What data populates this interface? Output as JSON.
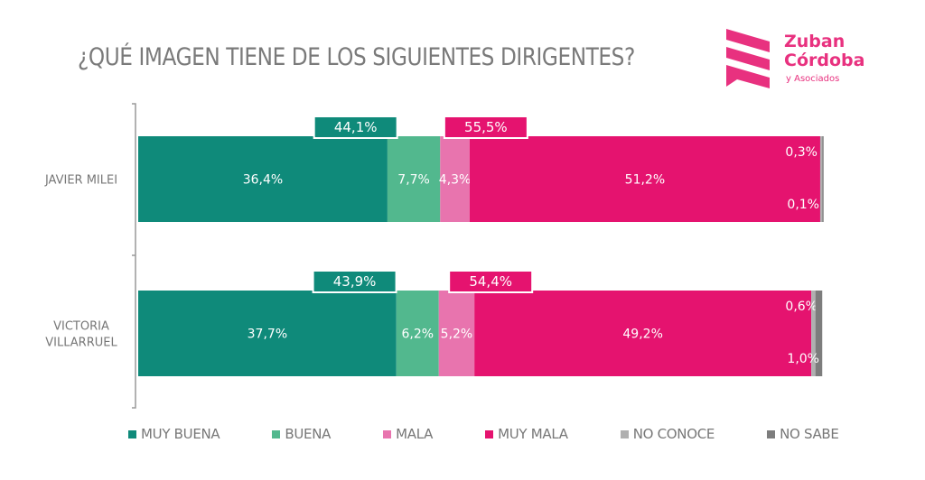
{
  "title": "¿QUÉ IMAGEN TIENE DE LOS SIGUIENTES DIRIGENTES?",
  "logo": {
    "line1": "Zuban",
    "line2": "Córdoba",
    "line3": "y Asociados",
    "color": "#e8317f"
  },
  "chart_data": {
    "type": "bar",
    "orientation": "horizontal",
    "stacked": true,
    "title": "¿QUÉ IMAGEN TIENE DE LOS SIGUIENTES DIRIGENTES?",
    "categories": [
      "JAVIER MILEI",
      "VICTORIA VILLARRUEL"
    ],
    "category_lines": [
      [
        "JAVIER MILEI"
      ],
      [
        "VICTORIA",
        "VILLARRUEL"
      ]
    ],
    "xlim": [
      0,
      100
    ],
    "series": [
      {
        "name": "MUY BUENA",
        "color": "#0f8a7a",
        "values": [
          36.4,
          37.7
        ],
        "labels": [
          "36,4%",
          "37,7%"
        ]
      },
      {
        "name": "BUENA",
        "color": "#52b88e",
        "values": [
          7.7,
          6.2
        ],
        "labels": [
          "7,7%",
          "6,2%"
        ]
      },
      {
        "name": "MALA",
        "color": "#e874ae",
        "values": [
          4.3,
          5.2
        ],
        "labels": [
          "4,3%",
          "5,2%"
        ]
      },
      {
        "name": "MUY MALA",
        "color": "#e5136f",
        "values": [
          51.2,
          49.2
        ],
        "labels": [
          "51,2%",
          "49,2%"
        ]
      },
      {
        "name": "NO CONOCE",
        "color": "#b0b0b0",
        "values": [
          0.3,
          0.6
        ],
        "labels": [
          "0,3%",
          "0,6%"
        ]
      },
      {
        "name": "NO SABE",
        "color": "#7d7d7d",
        "values": [
          0.1,
          1.0
        ],
        "labels": [
          "0,1%",
          "1,0%"
        ]
      }
    ],
    "totals": {
      "positive": {
        "values": [
          44.1,
          43.9
        ],
        "labels": [
          "44,1%",
          "43,9%"
        ],
        "color": "#0f8a7a"
      },
      "negative": {
        "values": [
          55.5,
          54.4
        ],
        "labels": [
          "55,5%",
          "54,4%"
        ],
        "color": "#e5136f"
      }
    },
    "legend": [
      "MUY BUENA",
      "BUENA",
      "MALA",
      "MUY MALA",
      "NO CONOCE",
      "NO SABE"
    ],
    "legend_position": "bottom",
    "grid": false
  }
}
